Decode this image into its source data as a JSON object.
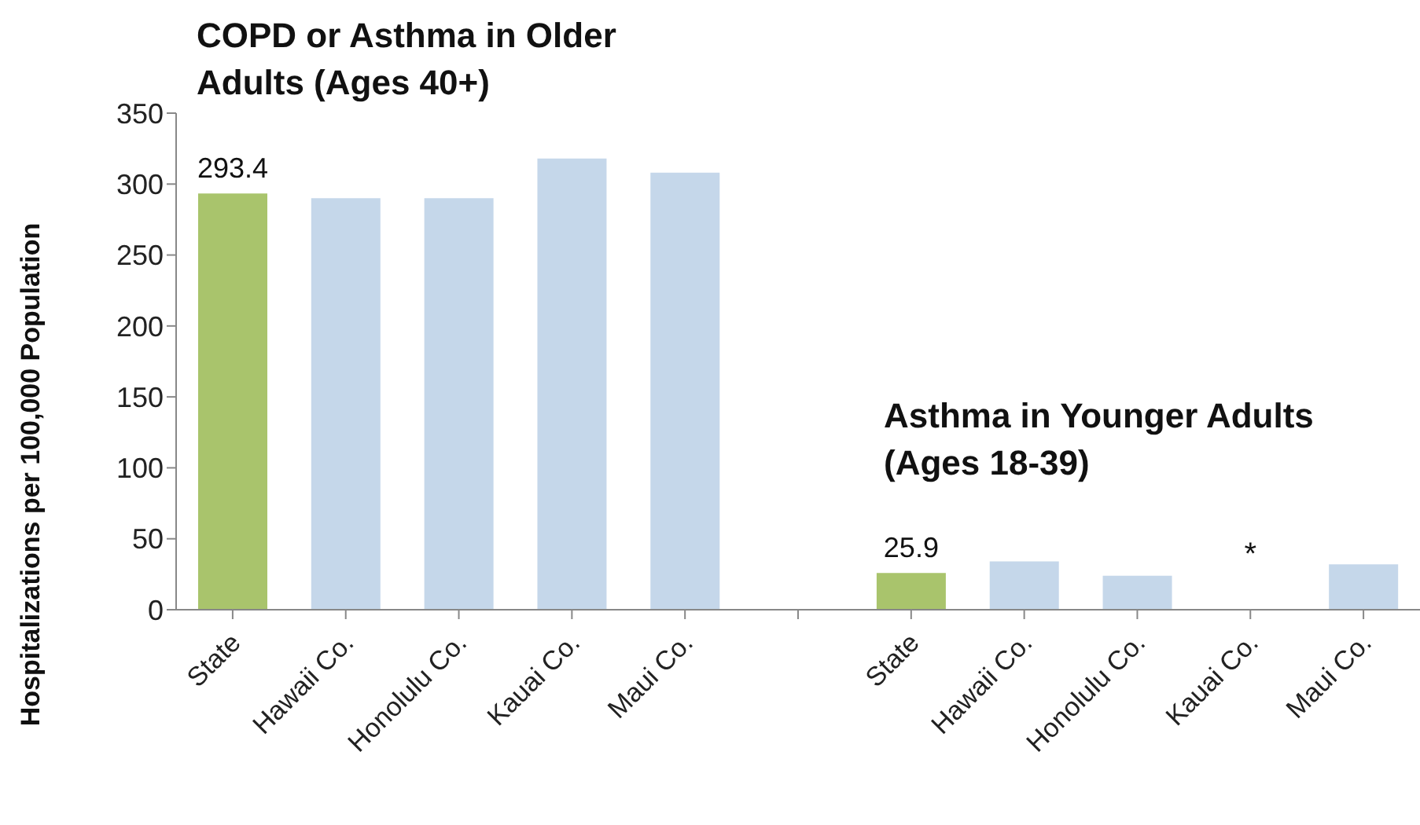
{
  "chart_data": {
    "type": "bar",
    "title": "COPD or Asthma in Older Adults (Ages 40+)",
    "ylabel": "Hospitalizations per 100,000 Population",
    "categories": [
      "State",
      "Hawaii Co.",
      "Honolulu Co.",
      "Kauai Co.",
      "Maui Co.",
      null,
      "State",
      "Hawaii Co.",
      "Honolulu Co.",
      "Kauai Co.",
      "Maui Co."
    ],
    "values": [
      293.4,
      290,
      290,
      318,
      308,
      null,
      25.9,
      34,
      24,
      null,
      32
    ],
    "colors": [
      "#a9c46c",
      "#c5d7ea",
      "#c5d7ea",
      "#c5d7ea",
      "#c5d7ea",
      "#c5d7ea",
      "#a9c46c",
      "#c5d7ea",
      "#c5d7ea",
      "#c5d7ea",
      "#c5d7ea"
    ],
    "value_labels": [
      "293.4",
      null,
      null,
      null,
      null,
      null,
      "25.9",
      null,
      null,
      null,
      null
    ],
    "annotations": [
      "Asthma in Younger Adults (Ages 18-39)",
      "*"
    ],
    "ylim": [
      0,
      350
    ],
    "yticks": [
      0,
      50,
      100,
      150,
      200,
      250,
      300,
      350
    ],
    "grid": false,
    "legend": false
  }
}
